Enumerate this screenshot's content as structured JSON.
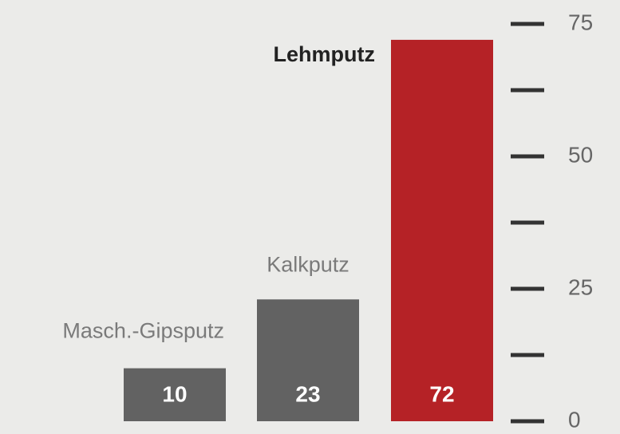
{
  "chart_data": {
    "type": "bar",
    "categories": [
      "Masch.-Gipsputz",
      "Kalkputz",
      "Lehmputz"
    ],
    "values": [
      10,
      23,
      72
    ],
    "colors": [
      "#626262",
      "#626262",
      "#b52226"
    ],
    "ylim": [
      0,
      75
    ],
    "yticks": [
      0,
      25,
      50,
      75
    ],
    "minor_yticks": [
      12.5,
      37.5,
      62.5
    ],
    "y_axis_side": "right"
  }
}
